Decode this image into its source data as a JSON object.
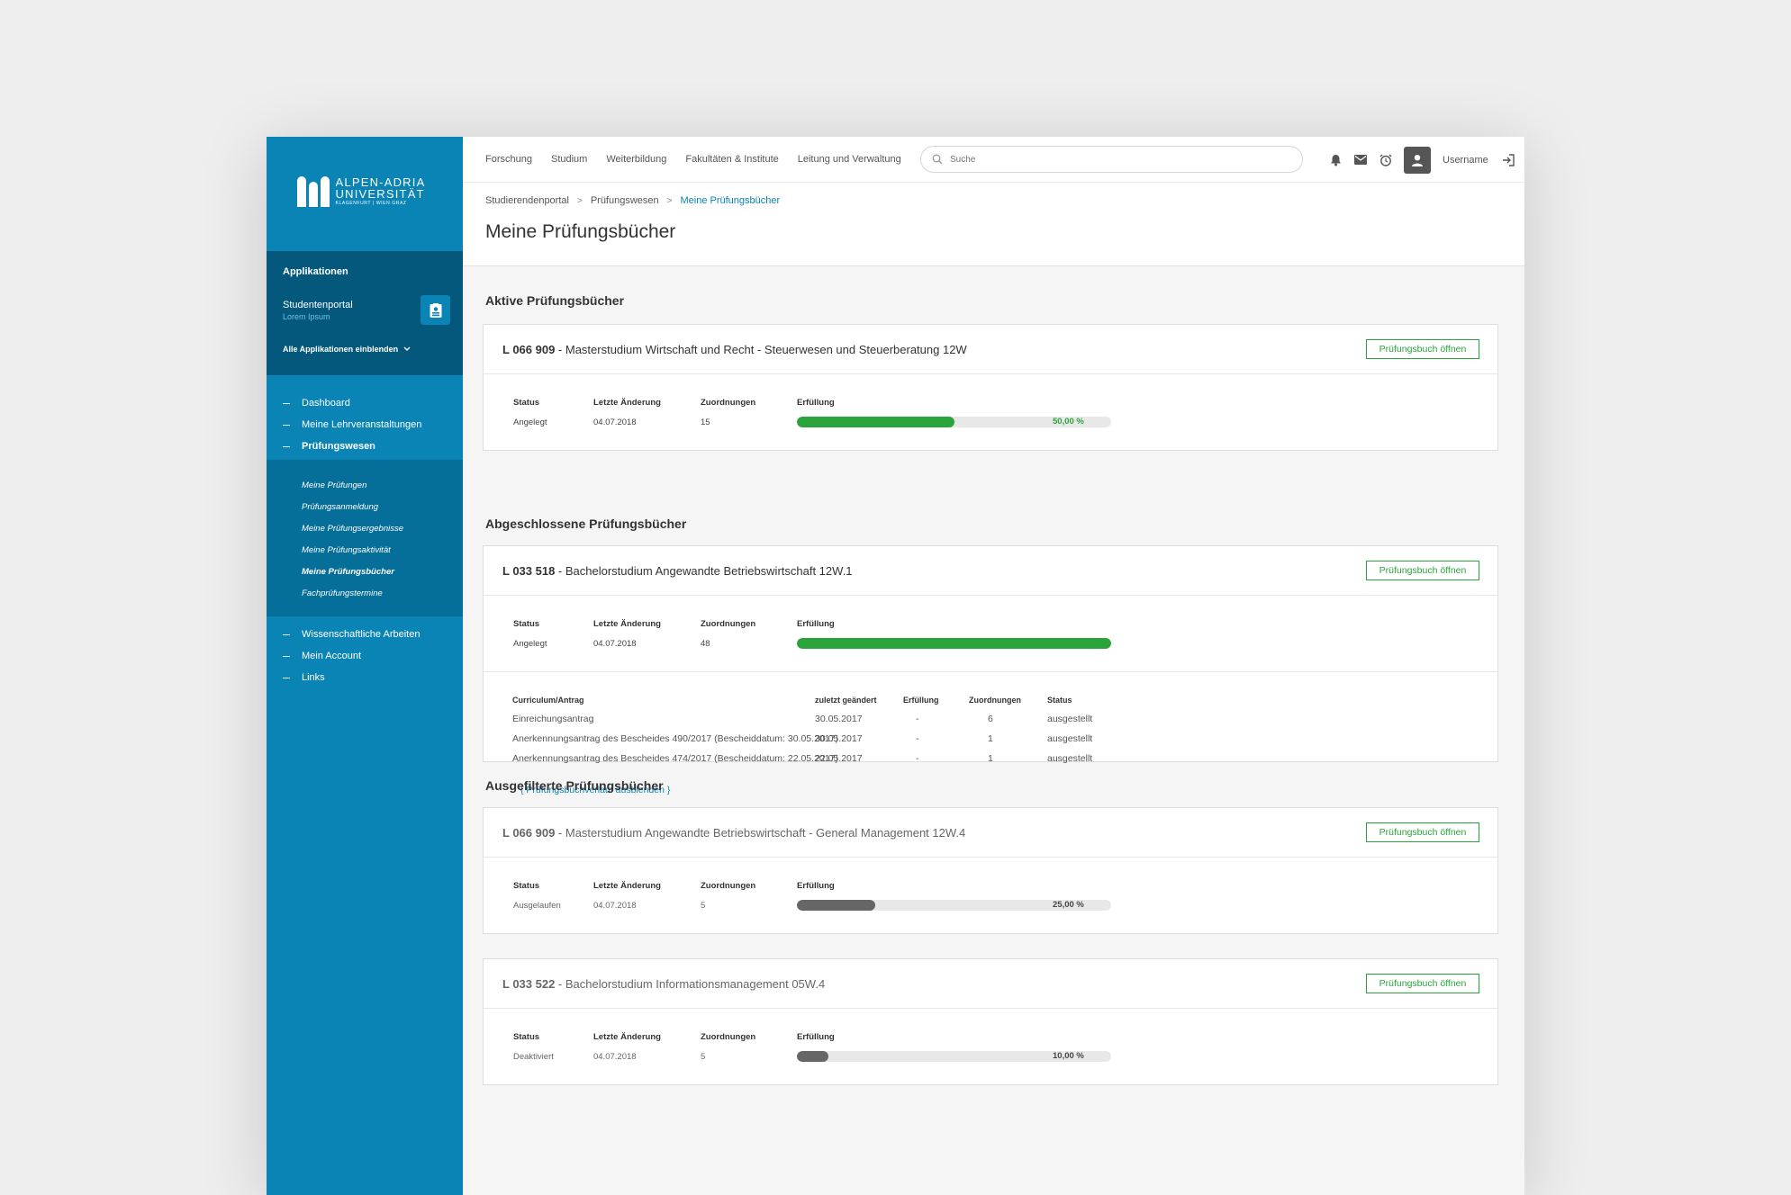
{
  "logo": {
    "line1": "ALPEN-ADRIA",
    "line2": "UNIVERSITÄT",
    "line3": "KLAGENFURT | WIEN GRAZ"
  },
  "apps": {
    "title": "Applikationen",
    "current_name": "Studentenportal",
    "current_sub": "Lorem Ipsum",
    "show_all": "Alle Applikationen einblenden"
  },
  "nav": {
    "items": [
      "Dashboard",
      "Meine Lehrveranstaltungen",
      "Prüfungswesen"
    ],
    "sub": [
      "Meine Prüfungen",
      "Prüfungsanmeldung",
      "Meine Prüfungsergebnisse",
      "Meine Prüfungsaktivität",
      "Meine Prüfungsbücher",
      "Fachprüfungstermine"
    ],
    "items2": [
      "Wissenschaftliche Arbeiten",
      "Mein Account",
      "Links"
    ]
  },
  "topnav": [
    "Forschung",
    "Studium",
    "Weiterbildung",
    "Fakultäten & Institute",
    "Leitung und Verwaltung"
  ],
  "search": {
    "placeholder": "Suche"
  },
  "user": {
    "name": "Username"
  },
  "breadcrumb": [
    "Studierendenportal",
    "Prüfungswesen",
    "Meine Prüfungsbücher"
  ],
  "page_title": "Meine Prüfungsbücher",
  "labels": {
    "status": "Status",
    "changed": "Letzte Änderung",
    "assign": "Zuordnungen",
    "fulfil": "Erfüllung",
    "open_button": "Prüfungsbuch öffnen"
  },
  "sections": {
    "active": "Aktive Prüfungsbücher",
    "completed": "Abgeschlossene Prüfungsbücher",
    "filtered": "Ausgefilterte Prüfungsbücher"
  },
  "books": [
    {
      "code": "L 066 909",
      "title": " - Masterstudium Wirtschaft und Recht - Steuerwesen und Steuerberatung 12W",
      "status": "Angelegt",
      "changed": "04.07.2018",
      "assign": "15",
      "percent": 50,
      "percent_label": "50,00 %",
      "color": "#2aa43a"
    },
    {
      "code": "L 033 518",
      "title": " - Bachelorstudium Angewandte Betriebswirtschaft 12W.1",
      "status": "Angelegt",
      "changed": "04.07.2018",
      "assign": "48",
      "percent": 100,
      "percent_label": "100,00 %",
      "color": "#2aa43a"
    },
    {
      "code": "L 066 909",
      "title": " - Masterstudium Angewandte Betriebswirtschaft - General Management 12W.4",
      "status": "Ausgelaufen",
      "changed": "04.07.2018",
      "assign": "5",
      "percent": 25,
      "percent_label": "25,00 %",
      "color": "#666666"
    },
    {
      "code": "L 033 522",
      "title": " - Bachelorstudium Informationsmanagement 05W.4",
      "status": "Deaktiviert",
      "changed": "04.07.2018",
      "assign": "5",
      "percent": 10,
      "percent_label": "10,00 %",
      "color": "#666666"
    }
  ],
  "history": {
    "headers": [
      "Curriculum/Antrag",
      "zuletzt geändert",
      "Erfüllung",
      "Zuordnungen",
      "Status"
    ],
    "rows": [
      [
        "Einreichungsantrag",
        "30.05.2017",
        "-",
        "6",
        "ausgestellt"
      ],
      [
        "Anerkennungsantrag des Bescheides 490/2017 (Bescheiddatum: 30.05.2017)",
        "30.05.2017",
        "-",
        "1",
        "ausgestellt"
      ],
      [
        "Anerkennungsantrag des Bescheides 474/2017 (Bescheiddatum: 22.05.2017)",
        "22.05.2017",
        "-",
        "1",
        "ausgestellt"
      ]
    ],
    "hide_link": "{ Prüfungsbuchverlauf ausblenden }"
  },
  "colors": {
    "primary": "#0a83b5",
    "dark": "#04587c",
    "success": "#2aa43a",
    "neutral": "#666666"
  }
}
